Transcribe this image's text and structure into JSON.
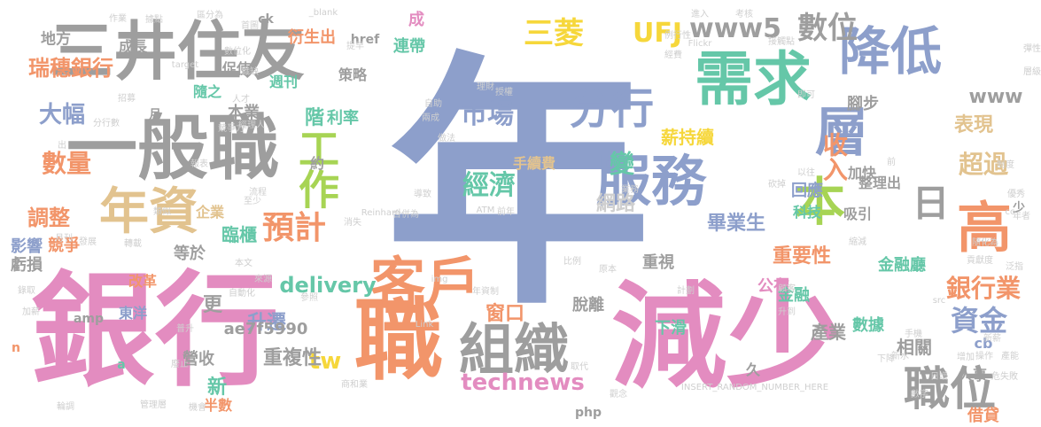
{
  "palette": {
    "pink": "#e38cc0",
    "gray": "#9e9e9e",
    "orange": "#f2956a",
    "blue": "#8d9fcb",
    "green": "#65c7a8",
    "lime": "#a7d454",
    "tan": "#e2c38f",
    "yellow": "#f6d73b",
    "light": "#cfcfcf"
  },
  "words": [
    {
      "text": "年"
    },
    {
      "text": "銀行"
    },
    {
      "text": "減少"
    },
    {
      "text": "一般職"
    },
    {
      "text": "三井住友"
    },
    {
      "text": "職"
    },
    {
      "text": "客戶"
    },
    {
      "text": "需求"
    },
    {
      "text": "組織"
    },
    {
      "text": "層"
    },
    {
      "text": "降低"
    },
    {
      "text": "服務"
    },
    {
      "text": "高"
    },
    {
      "text": "本"
    },
    {
      "text": "年資"
    },
    {
      "text": "工作"
    },
    {
      "text": "職位"
    },
    {
      "text": "日"
    },
    {
      "text": "分行"
    },
    {
      "text": "預計"
    },
    {
      "text": "三菱"
    },
    {
      "text": "UFJ"
    },
    {
      "text": "數位"
    },
    {
      "text": "www5"
    },
    {
      "text": "市場"
    },
    {
      "text": "經濟"
    },
    {
      "text": "變"
    },
    {
      "text": "收入"
    },
    {
      "text": "超過"
    },
    {
      "text": "資金"
    },
    {
      "text": "銀行業"
    },
    {
      "text": "瑞穗銀行"
    },
    {
      "text": "數量"
    },
    {
      "text": "大幅"
    },
    {
      "text": "調整"
    },
    {
      "text": "delivery"
    },
    {
      "text": "technews"
    },
    {
      "text": "表現"
    },
    {
      "text": "薪持續"
    },
    {
      "text": "www"
    },
    {
      "text": "網路"
    },
    {
      "text": "畢業生"
    },
    {
      "text": "重要性"
    },
    {
      "text": "窗口"
    },
    {
      "text": "tw"
    },
    {
      "text": "升遷"
    },
    {
      "text": "重複性"
    },
    {
      "text": "新"
    },
    {
      "text": "更"
    },
    {
      "text": "ae7f5990"
    },
    {
      "text": "臨櫃"
    },
    {
      "text": "階"
    },
    {
      "text": "利率"
    },
    {
      "text": "本業"
    },
    {
      "text": "地方"
    },
    {
      "text": "成長"
    },
    {
      "text": "衍生出"
    },
    {
      "text": "週刊"
    },
    {
      "text": "促使"
    },
    {
      "text": "隨之"
    },
    {
      "text": "策略"
    },
    {
      "text": "連帶"
    },
    {
      "text": "href"
    },
    {
      "text": "成"
    },
    {
      "text": "ck"
    },
    {
      "text": "影響"
    },
    {
      "text": "競爭"
    },
    {
      "text": "虧損"
    },
    {
      "text": "企業"
    },
    {
      "text": "等於"
    },
    {
      "text": "改革"
    },
    {
      "text": "東洋"
    },
    {
      "text": "營收"
    },
    {
      "text": "半數"
    },
    {
      "text": "php"
    },
    {
      "text": "脫離"
    },
    {
      "text": "重視"
    },
    {
      "text": "下滑"
    },
    {
      "text": "產業"
    },
    {
      "text": "數據"
    },
    {
      "text": "相關"
    },
    {
      "text": "人事"
    },
    {
      "text": "cb"
    },
    {
      "text": "借貸"
    },
    {
      "text": "公布"
    },
    {
      "text": "金融廳"
    },
    {
      "text": "金融"
    },
    {
      "text": "科技"
    },
    {
      "text": "回應"
    },
    {
      "text": "加快"
    },
    {
      "text": "整理出"
    },
    {
      "text": "吸引"
    },
    {
      "text": "腳步"
    },
    {
      "text": "手續費"
    },
    {
      "text": "約"
    },
    {
      "text": "久"
    },
    {
      "text": "amp"
    },
    {
      "text": "月"
    },
    {
      "text": "a"
    },
    {
      "text": "n"
    },
    {
      "text": "少"
    },
    {
      "text": "_blank"
    },
    {
      "text": "target"
    },
    {
      "text": "Flickr"
    },
    {
      "text": "Reinhard"
    },
    {
      "text": "INSERT_RANDOM_NUMBER_HERE"
    },
    {
      "text": "ATM"
    },
    {
      "text": "img"
    },
    {
      "text": "Link"
    },
    {
      "text": "src"
    },
    {
      "text": "作業"
    },
    {
      "text": "據點"
    },
    {
      "text": "區分為"
    },
    {
      "text": "首圖"
    },
    {
      "text": "進入"
    },
    {
      "text": "考核"
    },
    {
      "text": "例行性"
    },
    {
      "text": "提早"
    },
    {
      "text": "數位化"
    },
    {
      "text": "職缺"
    },
    {
      "text": "接觸點"
    },
    {
      "text": "彈性"
    },
    {
      "text": "層級"
    },
    {
      "text": "分行數"
    },
    {
      "text": "招募"
    },
    {
      "text": "人才"
    },
    {
      "text": "經理人"
    },
    {
      "text": "競爭力"
    },
    {
      "text": "理財"
    },
    {
      "text": "授權"
    },
    {
      "text": "自助"
    },
    {
      "text": "兩成"
    },
    {
      "text": "做法"
    },
    {
      "text": "報表"
    },
    {
      "text": "流程"
    },
    {
      "text": "至少"
    },
    {
      "text": "導致"
    },
    {
      "text": "業務"
    },
    {
      "text": "砍掉"
    },
    {
      "text": "以往"
    },
    {
      "text": "前"
    },
    {
      "text": "優秀"
    },
    {
      "text": "制度"
    },
    {
      "text": "年者"
    },
    {
      "text": "發展"
    },
    {
      "text": "月刊"
    },
    {
      "text": "轉載"
    },
    {
      "text": "消失"
    },
    {
      "text": "合併為"
    },
    {
      "text": "前年"
    },
    {
      "text": "縮減"
    },
    {
      "text": "隨化為"
    },
    {
      "text": "貢獻度"
    },
    {
      "text": "錄取"
    },
    {
      "text": "加薪"
    },
    {
      "text": "本文"
    },
    {
      "text": "來源"
    },
    {
      "text": "自動化"
    },
    {
      "text": "普升"
    },
    {
      "text": "參照"
    },
    {
      "text": "原本"
    },
    {
      "text": "比例"
    },
    {
      "text": "計劃"
    },
    {
      "text": "顧客"
    },
    {
      "text": "升到"
    },
    {
      "text": "新薪"
    },
    {
      "text": "手機"
    },
    {
      "text": "新水"
    },
    {
      "text": "產能"
    },
    {
      "text": "危失敗"
    },
    {
      "text": "操作"
    },
    {
      "text": "增加"
    },
    {
      "text": "下降"
    },
    {
      "text": "日增"
    },
    {
      "text": "數字"
    },
    {
      "text": "廢止"
    },
    {
      "text": "輪調"
    },
    {
      "text": "管理層"
    },
    {
      "text": "機會"
    },
    {
      "text": "商和業"
    },
    {
      "text": "取代"
    },
    {
      "text": "觀念"
    },
    {
      "text": "年資制"
    },
    {
      "text": "出"
    },
    {
      "text": "類似"
    },
    {
      "text": "cc"
    },
    {
      "text": "泛指"
    },
    {
      "text": "即可"
    },
    {
      "text": "經費"
    },
    {
      "text": "僅"
    }
  ]
}
